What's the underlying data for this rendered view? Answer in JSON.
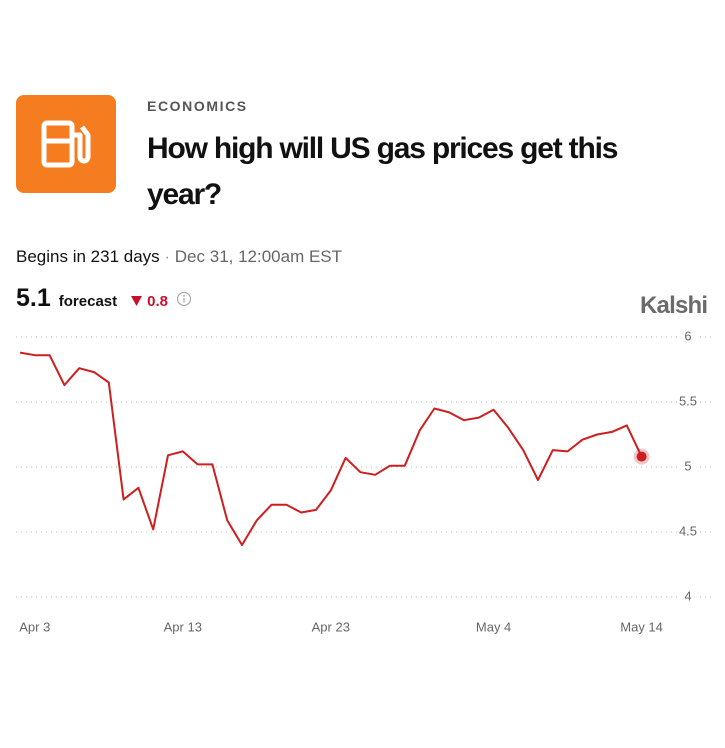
{
  "category": "ECONOMICS",
  "title": "How high will US gas prices get this year?",
  "status": "Begins in 231 days",
  "date": "Dec 31, 12:00am EST",
  "forecast": {
    "value": 5.1,
    "label": "forecast",
    "change": 0.8
  },
  "brand": "Kalshi",
  "chart_data": {
    "type": "line",
    "color": "#cc1f1f",
    "x": [
      "Apr 2",
      "Apr 3",
      "Apr 4",
      "Apr 5",
      "Apr 6",
      "Apr 7",
      "Apr 8",
      "Apr 9",
      "Apr 10",
      "Apr 11",
      "Apr 12",
      "Apr 13",
      "Apr 14",
      "Apr 15",
      "Apr 16",
      "Apr 17",
      "Apr 18",
      "Apr 19",
      "Apr 20",
      "Apr 21",
      "Apr 22",
      "Apr 23",
      "Apr 24",
      "Apr 25",
      "Apr 26",
      "Apr 27",
      "Apr 28",
      "Apr 29",
      "Apr 30",
      "May 1",
      "May 2",
      "May 3",
      "May 4",
      "May 5",
      "May 6",
      "May 7",
      "May 8",
      "May 9",
      "May 10",
      "May 11",
      "May 12",
      "May 13",
      "May 14"
    ],
    "values": [
      5.88,
      5.86,
      5.86,
      5.63,
      5.76,
      5.73,
      5.65,
      4.75,
      4.84,
      4.52,
      5.09,
      5.12,
      5.02,
      5.02,
      4.59,
      4.4,
      4.59,
      4.71,
      4.71,
      4.65,
      4.67,
      4.82,
      5.07,
      4.96,
      4.94,
      5.01,
      5.01,
      5.28,
      5.45,
      5.42,
      5.36,
      5.38,
      5.44,
      5.3,
      5.13,
      4.9,
      5.13,
      5.12,
      5.21,
      5.25,
      5.27,
      5.32,
      5.08
    ],
    "xticks": [
      "Apr 3",
      "Apr 13",
      "Apr 23",
      "May 4",
      "May 14"
    ],
    "ylim": [
      4,
      6
    ],
    "yticks": [
      4,
      4.5,
      5,
      5.5,
      6
    ],
    "grid": true
  }
}
